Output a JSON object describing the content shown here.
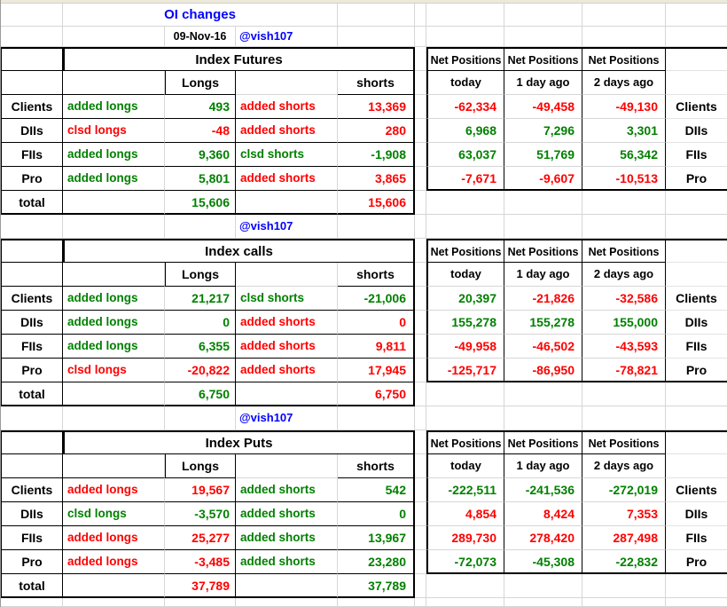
{
  "title": "OI changes",
  "date": "09-Nov-16",
  "handle": "@vish107",
  "columns": {
    "longs": "Longs",
    "shorts": "shorts"
  },
  "net": {
    "header": "Net Positions",
    "subheaders": [
      "today",
      "1 day ago",
      "2 days ago"
    ]
  },
  "colors": {
    "green": "#008000",
    "red": "#ff0000",
    "blue": "#0000ff",
    "gridline": "#d6d6d6"
  },
  "sections": [
    {
      "banner": "Index Futures",
      "rows": [
        {
          "label": "Clients",
          "longs": {
            "action": "added longs",
            "value": "493",
            "color": "green"
          },
          "shorts": {
            "action": "added shorts",
            "value": "13,369",
            "color": "red"
          },
          "net": {
            "values": [
              "-62,334",
              "-49,458",
              "-49,130"
            ],
            "colors": [
              "red",
              "red",
              "red"
            ]
          }
        },
        {
          "label": "DIIs",
          "longs": {
            "action": "clsd longs",
            "value": "-48",
            "color": "red"
          },
          "shorts": {
            "action": "added shorts",
            "value": "280",
            "color": "red"
          },
          "net": {
            "values": [
              "6,968",
              "7,296",
              "3,301"
            ],
            "colors": [
              "green",
              "green",
              "green"
            ]
          }
        },
        {
          "label": "FIIs",
          "longs": {
            "action": "added longs",
            "value": "9,360",
            "color": "green"
          },
          "shorts": {
            "action": "clsd shorts",
            "value": "-1,908",
            "color": "green"
          },
          "net": {
            "values": [
              "63,037",
              "51,769",
              "56,342"
            ],
            "colors": [
              "green",
              "green",
              "green"
            ]
          }
        },
        {
          "label": "Pro",
          "longs": {
            "action": "added longs",
            "value": "5,801",
            "color": "green"
          },
          "shorts": {
            "action": "added shorts",
            "value": "3,865",
            "color": "red"
          },
          "net": {
            "values": [
              "-7,671",
              "-9,607",
              "-10,513"
            ],
            "colors": [
              "red",
              "red",
              "red"
            ]
          }
        }
      ],
      "total": {
        "label": "total",
        "longs_value": "15,606",
        "longs_color": "green",
        "shorts_value": "15,606",
        "shorts_color": "red"
      }
    },
    {
      "banner": "Index calls",
      "rows": [
        {
          "label": "Clients",
          "longs": {
            "action": "added longs",
            "value": "21,217",
            "color": "green"
          },
          "shorts": {
            "action": "clsd shorts",
            "value": "-21,006",
            "color": "green"
          },
          "net": {
            "values": [
              "20,397",
              "-21,826",
              "-32,586"
            ],
            "colors": [
              "green",
              "red",
              "red"
            ]
          }
        },
        {
          "label": "DIIs",
          "longs": {
            "action": "added longs",
            "value": "0",
            "color": "green"
          },
          "shorts": {
            "action": "added shorts",
            "value": "0",
            "color": "red"
          },
          "net": {
            "values": [
              "155,278",
              "155,278",
              "155,000"
            ],
            "colors": [
              "green",
              "green",
              "green"
            ]
          }
        },
        {
          "label": "FIIs",
          "longs": {
            "action": "added longs",
            "value": "6,355",
            "color": "green"
          },
          "shorts": {
            "action": "added shorts",
            "value": "9,811",
            "color": "red"
          },
          "net": {
            "values": [
              "-49,958",
              "-46,502",
              "-43,593"
            ],
            "colors": [
              "red",
              "red",
              "red"
            ]
          }
        },
        {
          "label": "Pro",
          "longs": {
            "action": "clsd longs",
            "value": "-20,822",
            "color": "red"
          },
          "shorts": {
            "action": "added shorts",
            "value": "17,945",
            "color": "red"
          },
          "net": {
            "values": [
              "-125,717",
              "-86,950",
              "-78,821"
            ],
            "colors": [
              "red",
              "red",
              "red"
            ]
          }
        }
      ],
      "total": {
        "label": "total",
        "longs_value": "6,750",
        "longs_color": "green",
        "shorts_value": "6,750",
        "shorts_color": "red"
      }
    },
    {
      "banner": "Index Puts",
      "rows": [
        {
          "label": "Clients",
          "longs": {
            "action": "added longs",
            "value": "19,567",
            "color": "red"
          },
          "shorts": {
            "action": "added shorts",
            "value": "542",
            "color": "green"
          },
          "net": {
            "values": [
              "-222,511",
              "-241,536",
              "-272,019"
            ],
            "colors": [
              "green",
              "green",
              "green"
            ]
          }
        },
        {
          "label": "DIIs",
          "longs": {
            "action": "clsd longs",
            "value": "-3,570",
            "color": "green"
          },
          "shorts": {
            "action": "added shorts",
            "value": "0",
            "color": "green"
          },
          "net": {
            "values": [
              "4,854",
              "8,424",
              "7,353"
            ],
            "colors": [
              "red",
              "red",
              "red"
            ]
          }
        },
        {
          "label": "FIIs",
          "longs": {
            "action": "added longs",
            "value": "25,277",
            "color": "red"
          },
          "shorts": {
            "action": "added shorts",
            "value": "13,967",
            "color": "green"
          },
          "net": {
            "values": [
              "289,730",
              "278,420",
              "287,498"
            ],
            "colors": [
              "red",
              "red",
              "red"
            ]
          }
        },
        {
          "label": "Pro",
          "longs": {
            "action": "added longs",
            "value": "-3,485",
            "color": "red"
          },
          "shorts": {
            "action": "added shorts",
            "value": "23,280",
            "color": "green"
          },
          "net": {
            "values": [
              "-72,073",
              "-45,308",
              "-22,832"
            ],
            "colors": [
              "green",
              "green",
              "green"
            ]
          }
        }
      ],
      "total": {
        "label": "total",
        "longs_value": "37,789",
        "longs_color": "red",
        "shorts_value": "37,789",
        "shorts_color": "green"
      }
    }
  ]
}
